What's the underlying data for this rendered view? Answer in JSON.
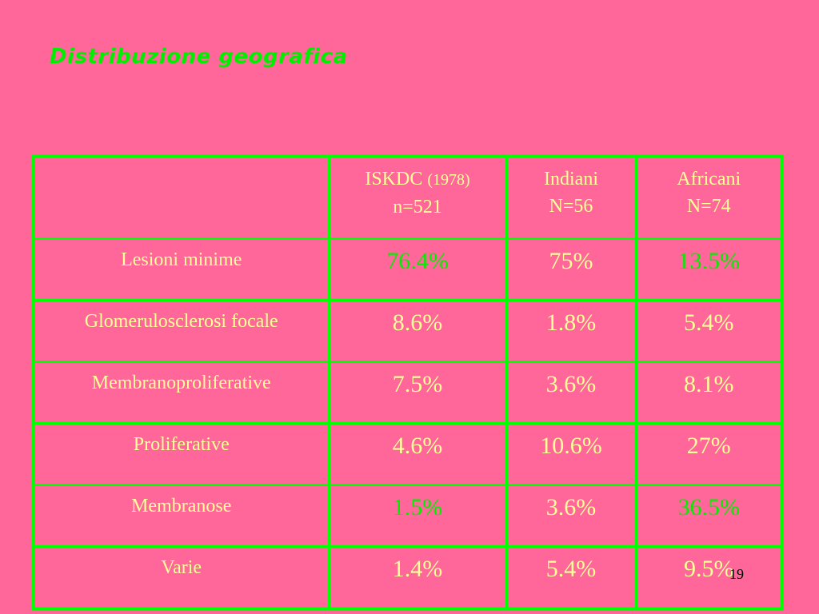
{
  "slide": {
    "title": "Distribuzione geografica",
    "page_number": "19"
  },
  "table": {
    "headers": [
      {
        "line1": "ISKDC",
        "line1_extra": "(1978)",
        "line2": "n=521"
      },
      {
        "line1": "Indiani",
        "line2": "N=56"
      },
      {
        "line1": "Africani",
        "line2": "N=74"
      }
    ],
    "rows": [
      {
        "label": "Lesioni minime",
        "values": [
          "76.4%",
          "75%",
          "13.5%"
        ]
      },
      {
        "label": "Glomerulosclerosi focale",
        "values": [
          "8.6%",
          "1.8%",
          "5.4%"
        ]
      },
      {
        "label": "Membranoproliferative",
        "values": [
          "7.5%",
          "3.6%",
          "8.1%"
        ]
      },
      {
        "label": "Proliferative",
        "values": [
          "4.6%",
          "10.6%",
          "27%"
        ]
      },
      {
        "label": "Membranose",
        "values": [
          "1.5%",
          "3.6%",
          "36.5%"
        ]
      },
      {
        "label": "Varie",
        "values": [
          "1.4%",
          "5.4%",
          "9.5%"
        ]
      }
    ]
  },
  "colors": {
    "background": "#ff6699",
    "title": "#00ee00",
    "grid": "#00ff00",
    "text": "#ffff99",
    "highlight": "#00ee00"
  }
}
